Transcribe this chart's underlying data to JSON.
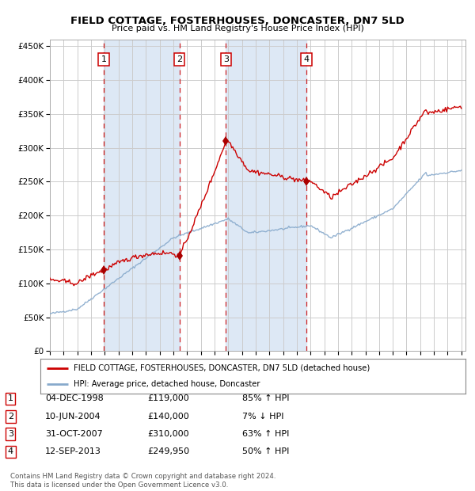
{
  "title": "FIELD COTTAGE, FOSTERHOUSES, DONCASTER, DN7 5LD",
  "subtitle": "Price paid vs. HM Land Registry's House Price Index (HPI)",
  "ylim": [
    0,
    460000
  ],
  "yticks": [
    0,
    50000,
    100000,
    150000,
    200000,
    250000,
    300000,
    350000,
    400000,
    450000
  ],
  "ytick_labels": [
    "£0",
    "£50K",
    "£100K",
    "£150K",
    "£200K",
    "£250K",
    "£300K",
    "£350K",
    "£400K",
    "£450K"
  ],
  "sale_dates": [
    "1998-12-04",
    "2004-06-10",
    "2007-10-31",
    "2013-09-12"
  ],
  "sale_prices": [
    119000,
    140000,
    310000,
    249950
  ],
  "sale_labels": [
    "1",
    "2",
    "3",
    "4"
  ],
  "legend_property": "FIELD COTTAGE, FOSTERHOUSES, DONCASTER, DN7 5LD (detached house)",
  "legend_hpi": "HPI: Average price, detached house, Doncaster",
  "property_line_color": "#cc0000",
  "hpi_line_color": "#88aacc",
  "sale_marker_color": "#aa0000",
  "dashed_line_color": "#cc0000",
  "shade_color": "#dde8f5",
  "grid_color": "#cccccc",
  "background_color": "#ffffff",
  "table_rows": [
    [
      "1",
      "04-DEC-1998",
      "£119,000",
      "85% ↑ HPI"
    ],
    [
      "2",
      "10-JUN-2004",
      "£140,000",
      "7% ↓ HPI"
    ],
    [
      "3",
      "31-OCT-2007",
      "£310,000",
      "63% ↑ HPI"
    ],
    [
      "4",
      "12-SEP-2013",
      "£249,950",
      "50% ↑ HPI"
    ]
  ],
  "footer": "Contains HM Land Registry data © Crown copyright and database right 2024.\nThis data is licensed under the Open Government Licence v3.0."
}
